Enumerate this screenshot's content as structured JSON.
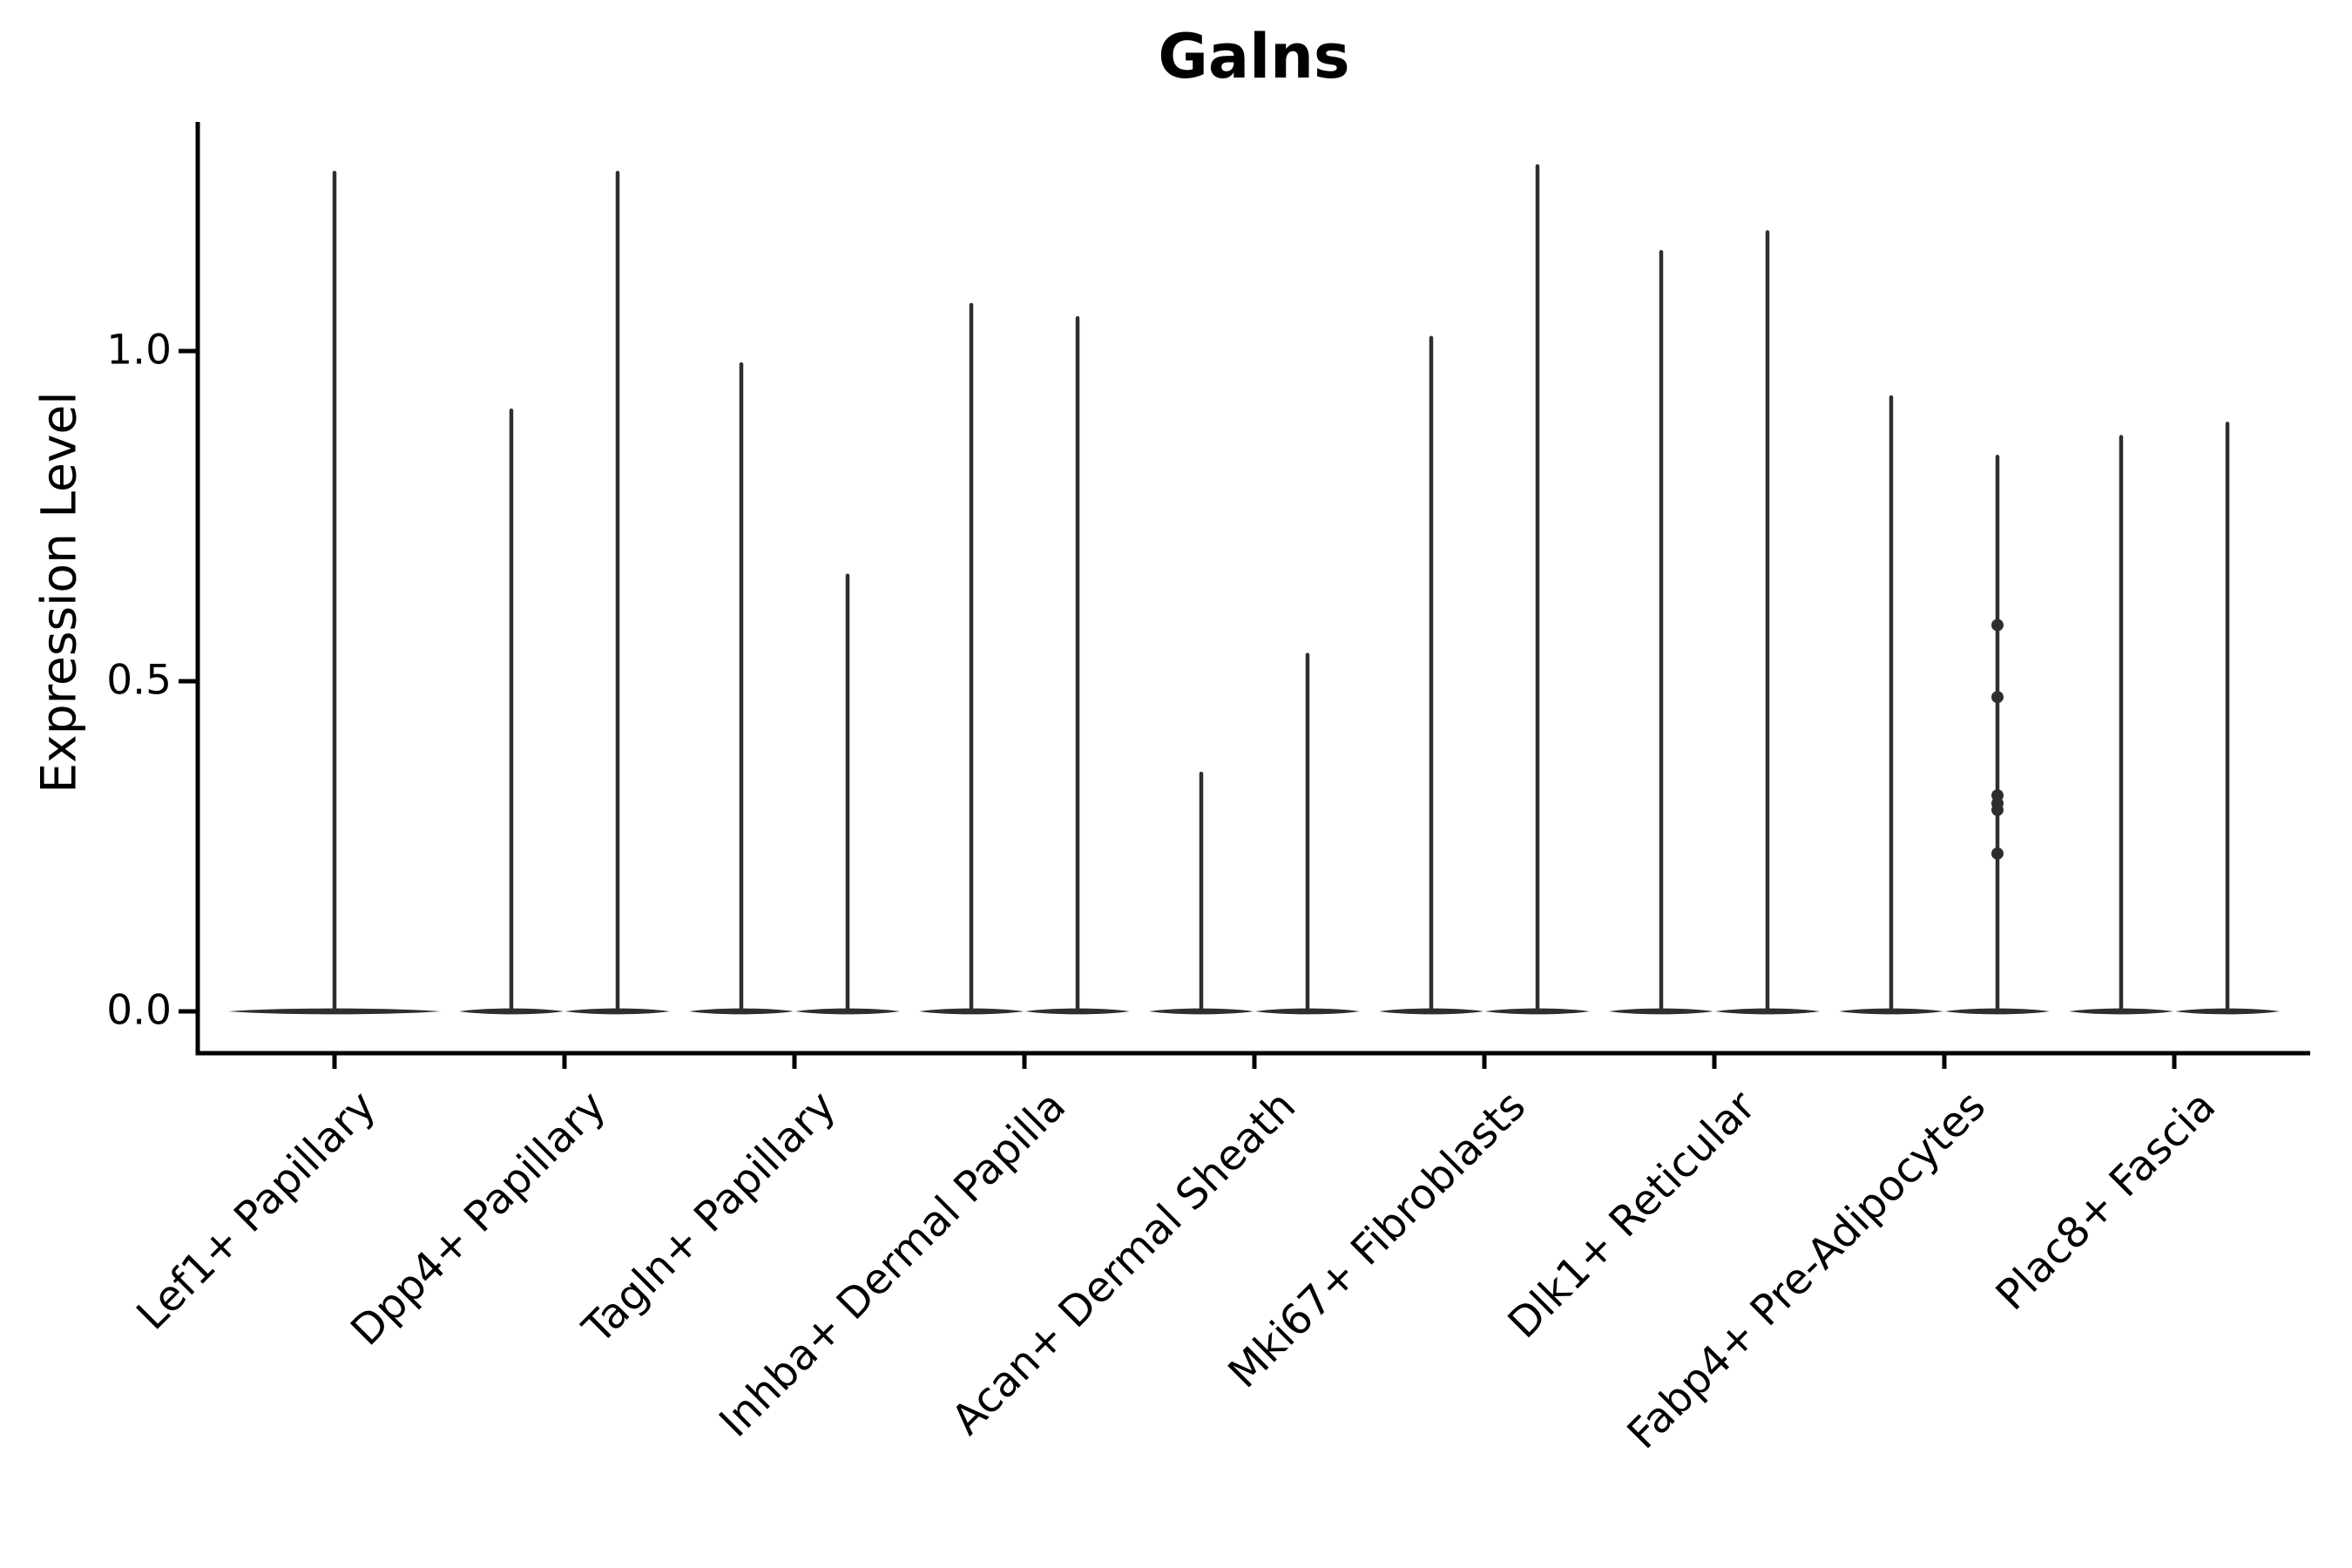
{
  "title": "Galns",
  "y_axis": {
    "label": "Expression Level",
    "tick_labels": [
      "0.0",
      "0.5",
      "1.0"
    ]
  },
  "x_axis": {
    "categories": [
      "Lef1+ Papillary",
      "Dpp4+ Papillary",
      "Tagln+ Papillary",
      "Inhba+ Dermal Papilla",
      "Acan+ Dermal Sheath",
      "Mki67+ Fibroblasts",
      "Dlk1+ Reticular",
      "Fabp4+ Pre-Adipocytes",
      "Plac8+ Fascia"
    ]
  },
  "colors": {
    "violin": "#2e2e2e",
    "axis": "#000000",
    "background": "#ffffff"
  },
  "chart_data": {
    "type": "violin",
    "title": "Galns",
    "xlabel": "",
    "ylabel": "Expression Level",
    "ylim": [
      0,
      1.35
    ],
    "yticks": [
      0.0,
      0.5,
      1.0
    ],
    "grid": false,
    "legend": "none",
    "categories": [
      "Lef1+ Papillary",
      "Dpp4+ Papillary",
      "Tagln+ Papillary",
      "Inhba+ Dermal Papilla",
      "Acan+ Dermal Sheath",
      "Mki67+ Fibroblasts",
      "Dlk1+ Reticular",
      "Fabp4+ Pre-Adipocytes",
      "Plac8+ Fascia"
    ],
    "baseline_value": 0.0,
    "violins": [
      {
        "category": "Lef1+ Papillary",
        "tails": [
          {
            "position": "center",
            "max": 1.27
          }
        ]
      },
      {
        "category": "Dpp4+ Papillary",
        "tails": [
          {
            "position": "left",
            "max": 0.91
          },
          {
            "position": "right",
            "max": 1.27
          }
        ]
      },
      {
        "category": "Tagln+ Papillary",
        "tails": [
          {
            "position": "left",
            "max": 0.98
          },
          {
            "position": "right",
            "max": 0.66
          }
        ]
      },
      {
        "category": "Inhba+ Dermal Papilla",
        "tails": [
          {
            "position": "left",
            "max": 1.07
          },
          {
            "position": "right",
            "max": 1.05
          }
        ]
      },
      {
        "category": "Acan+ Dermal Sheath",
        "tails": [
          {
            "position": "left",
            "max": 0.36
          },
          {
            "position": "right",
            "max": 0.54
          }
        ]
      },
      {
        "category": "Mki67+ Fibroblasts",
        "tails": [
          {
            "position": "left",
            "max": 1.02
          },
          {
            "position": "right",
            "max": 1.28
          }
        ]
      },
      {
        "category": "Dlk1+ Reticular",
        "tails": [
          {
            "position": "left",
            "max": 1.15
          },
          {
            "position": "right",
            "max": 1.18
          }
        ]
      },
      {
        "category": "Fabp4+ Pre-Adipocytes",
        "tails": [
          {
            "position": "left",
            "max": 0.93
          },
          {
            "position": "right",
            "max": 0.84,
            "points": [
              0.585,
              0.476,
              0.327,
              0.315,
              0.305,
              0.239
            ]
          }
        ]
      },
      {
        "category": "Plac8+ Fascia",
        "tails": [
          {
            "position": "left",
            "max": 0.87
          },
          {
            "position": "right",
            "max": 0.89
          }
        ]
      }
    ]
  }
}
